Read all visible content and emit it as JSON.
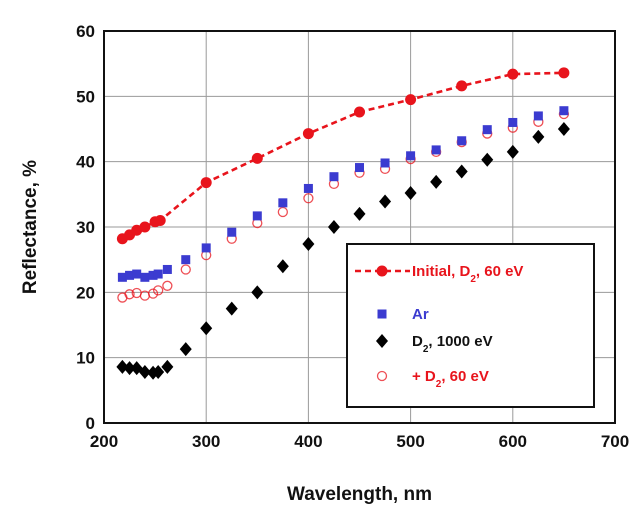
{
  "chart_data": {
    "type": "scatter",
    "xlabel": "Wavelength, nm",
    "ylabel": "Reflectance, %",
    "xlim": [
      200,
      700
    ],
    "ylim": [
      0,
      60
    ],
    "xticks": [
      200,
      300,
      400,
      500,
      600,
      700
    ],
    "yticks": [
      0,
      10,
      20,
      30,
      40,
      50,
      60
    ],
    "grid": true,
    "legend_position": "lower-right",
    "series": [
      {
        "key": "initial",
        "name": "Initial, D",
        "name_sub": "2",
        "name_tail": ", 60 eV",
        "color": "#e8141c",
        "marker": "filled-circle",
        "line": "dashed",
        "x": [
          218,
          225,
          232,
          240,
          250,
          255,
          300,
          350,
          400,
          450,
          500,
          550,
          600,
          650
        ],
        "y": [
          28.2,
          28.8,
          29.5,
          30.0,
          30.8,
          31.0,
          36.8,
          40.5,
          44.3,
          47.6,
          49.5,
          51.6,
          53.4,
          53.6
        ]
      },
      {
        "key": "ar",
        "name": "Ar",
        "name_sub": "",
        "name_tail": "",
        "color": "#3b3bd0",
        "marker": "filled-square",
        "line": "none",
        "x": [
          218,
          225,
          232,
          240,
          248,
          253,
          262,
          280,
          300,
          325,
          350,
          375,
          400,
          425,
          450,
          475,
          500,
          525,
          550,
          575,
          600,
          625,
          650
        ],
        "y": [
          22.3,
          22.6,
          22.8,
          22.3,
          22.6,
          22.8,
          23.5,
          25.0,
          26.8,
          29.2,
          31.7,
          33.7,
          35.9,
          37.7,
          39.1,
          39.8,
          40.9,
          41.8,
          43.2,
          44.9,
          46.0,
          47.0,
          47.8
        ]
      },
      {
        "key": "d2_1000",
        "name": "D",
        "name_sub": "2",
        "name_tail": ", 1000 eV",
        "color": "#000000",
        "marker": "filled-diamond",
        "line": "none",
        "x": [
          218,
          225,
          232,
          240,
          248,
          253,
          262,
          280,
          300,
          325,
          350,
          375,
          400,
          425,
          450,
          475,
          500,
          525,
          550,
          575,
          600,
          625,
          650
        ],
        "y": [
          8.6,
          8.4,
          8.4,
          7.8,
          7.7,
          7.8,
          8.6,
          11.3,
          14.5,
          17.5,
          20.0,
          24.0,
          27.4,
          30.0,
          32.0,
          33.9,
          35.2,
          36.9,
          38.5,
          40.3,
          41.5,
          43.8,
          45.0
        ]
      },
      {
        "key": "d2_60",
        "name": "+ D",
        "name_sub": "2",
        "name_tail": ", 60 eV",
        "color": "#e8141c",
        "marker": "open-circle",
        "line": "none",
        "x": [
          218,
          225,
          232,
          240,
          248,
          253,
          262,
          280,
          300,
          325,
          350,
          375,
          400,
          425,
          450,
          475,
          500,
          525,
          550,
          575,
          600,
          625,
          650
        ],
        "y": [
          19.2,
          19.7,
          19.9,
          19.5,
          19.8,
          20.3,
          21.0,
          23.5,
          25.7,
          28.2,
          30.6,
          32.3,
          34.4,
          36.6,
          38.3,
          38.9,
          40.4,
          41.5,
          43.0,
          44.3,
          45.2,
          46.1,
          47.3
        ]
      }
    ]
  }
}
